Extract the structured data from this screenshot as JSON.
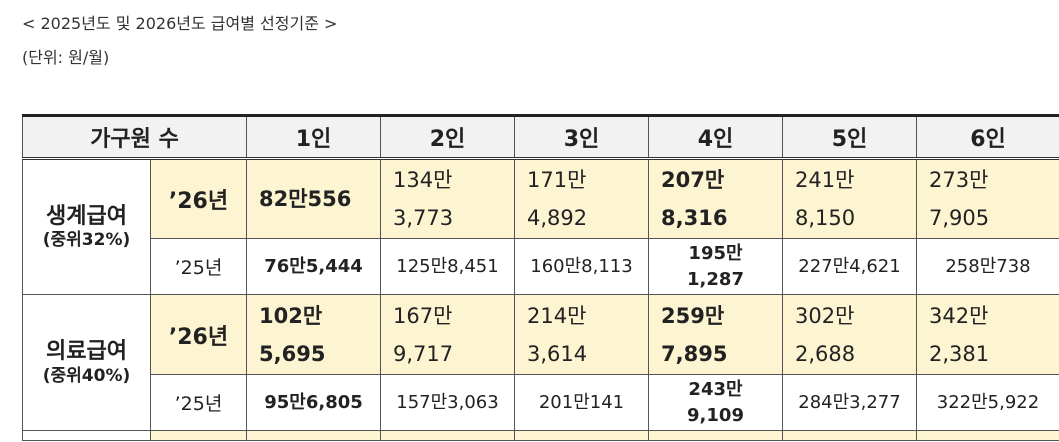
{
  "caption": {
    "title": "< 2025년도 및 2026년도 급여별 선정기준 >",
    "unit": "(단위: 원/월)"
  },
  "table": {
    "header_label": "가구원 수",
    "columns": [
      "1인",
      "2인",
      "3인",
      "4인",
      "5인",
      "6인"
    ],
    "groups": [
      {
        "name": "생계급여",
        "sub": "(중위32%)",
        "rows": [
          {
            "year": "’26년",
            "cells": [
              {
                "l1": "82만556",
                "l2": ""
              },
              {
                "l1": "134만",
                "l2": "3,773"
              },
              {
                "l1": "171만",
                "l2": "4,892"
              },
              {
                "l1": "207만",
                "l2": "8,316"
              },
              {
                "l1": "241만",
                "l2": "8,150"
              },
              {
                "l1": "273만",
                "l2": "7,905"
              }
            ]
          },
          {
            "year": "’25년",
            "cells": [
              {
                "l1": "76만5,444",
                "l2": ""
              },
              {
                "l1": "125만8,451",
                "l2": ""
              },
              {
                "l1": "160만8,113",
                "l2": ""
              },
              {
                "l1": "195만",
                "l2": "1,287"
              },
              {
                "l1": "227만4,621",
                "l2": ""
              },
              {
                "l1": "258만738",
                "l2": ""
              }
            ]
          }
        ]
      },
      {
        "name": "의료급여",
        "sub": "(중위40%)",
        "rows": [
          {
            "year": "’26년",
            "cells": [
              {
                "l1": "102만",
                "l2": "5,695"
              },
              {
                "l1": "167만",
                "l2": "9,717"
              },
              {
                "l1": "214만",
                "l2": "3,614"
              },
              {
                "l1": "259만",
                "l2": "7,895"
              },
              {
                "l1": "302만",
                "l2": "2,688"
              },
              {
                "l1": "342만",
                "l2": "2,381"
              }
            ]
          },
          {
            "year": "’25년",
            "cells": [
              {
                "l1": "95만6,805",
                "l2": ""
              },
              {
                "l1": "157만3,063",
                "l2": ""
              },
              {
                "l1": "201만141",
                "l2": ""
              },
              {
                "l1": "243만",
                "l2": "9,109"
              },
              {
                "l1": "284만3,277",
                "l2": ""
              },
              {
                "l1": "322만5,922",
                "l2": ""
              }
            ]
          }
        ]
      }
    ]
  }
}
